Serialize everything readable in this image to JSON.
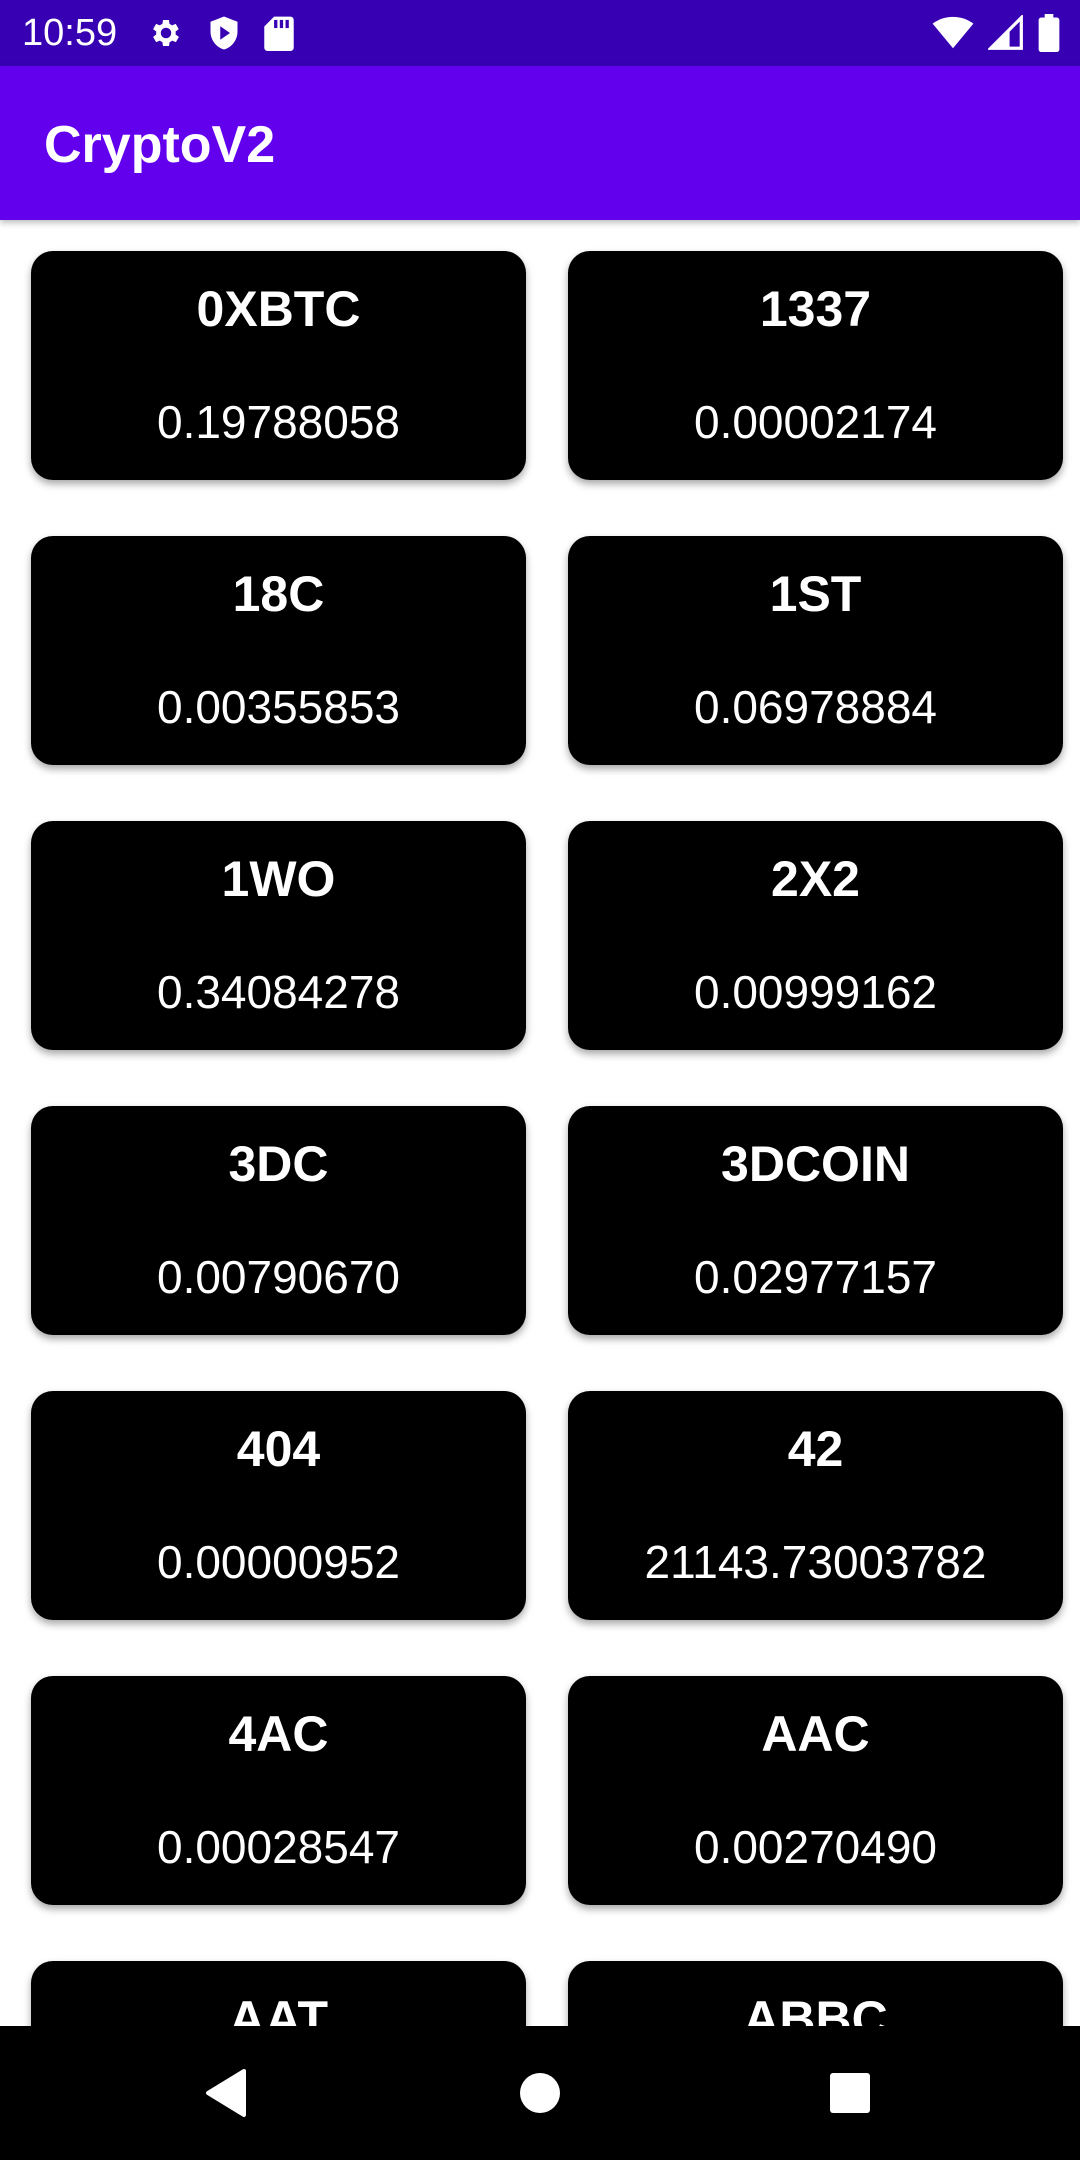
{
  "status_bar": {
    "time": "10:59",
    "left_icons": [
      "gear-icon",
      "shield-icon",
      "sd-card-icon"
    ],
    "right_icons": [
      "wifi-icon",
      "signal-icon",
      "battery-icon"
    ]
  },
  "app_bar": {
    "title": "CryptoV2",
    "color": "#6200ee"
  },
  "colors": {
    "status_bar": "#3700b3",
    "app_bar": "#6200ee",
    "card_background": "#000000",
    "card_text": "#ffffff",
    "page_background": "#ffffff"
  },
  "coins": [
    {
      "symbol": "0XBTC",
      "price": "0.19788058"
    },
    {
      "symbol": "1337",
      "price": "0.00002174"
    },
    {
      "symbol": "18C",
      "price": "0.00355853"
    },
    {
      "symbol": "1ST",
      "price": "0.06978884"
    },
    {
      "symbol": "1WO",
      "price": "0.34084278"
    },
    {
      "symbol": "2X2",
      "price": "0.00999162"
    },
    {
      "symbol": "3DC",
      "price": "0.00790670"
    },
    {
      "symbol": "3DCOIN",
      "price": "0.02977157"
    },
    {
      "symbol": "404",
      "price": "0.00000952"
    },
    {
      "symbol": "42",
      "price": "21143.73003782"
    },
    {
      "symbol": "4AC",
      "price": "0.00028547"
    },
    {
      "symbol": "AAC",
      "price": "0.00270490"
    },
    {
      "symbol": "AAT",
      "price": ""
    },
    {
      "symbol": "ABBC",
      "price": ""
    }
  ],
  "nav_bar": {
    "buttons": [
      "back-icon",
      "home-icon",
      "recents-icon"
    ]
  }
}
